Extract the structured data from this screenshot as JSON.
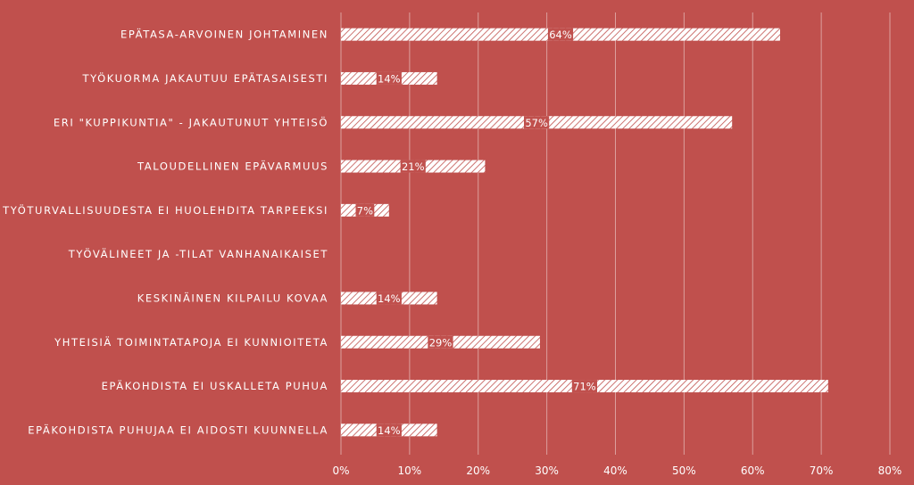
{
  "chart_data": {
    "type": "bar",
    "orientation": "horizontal",
    "categories": [
      "EPÄTASA-ARVOINEN JOHTAMINEN",
      "TYÖKUORMA JAKAUTUU EPÄTASAISESTI",
      "ERI \"KUPPIKUNTIA\" - JAKAUTUNUT YHTEISÖ",
      "TALOUDELLINEN EPÄVARMUUS",
      "TYÖTURVALLISUUDESTA EI HUOLEHDITA TARPEEKSI",
      "TYÖVÄLINEET JA -TILAT VANHANAIKAISET",
      "KESKINÄINEN KILPAILU KOVAA",
      "YHTEISIÄ TOIMINTATAPOJA EI KUNNIOITETA",
      "EPÄKOHDISTA EI USKALLETA PUHUA",
      "EPÄKOHDISTA PUHUJAA EI AIDOSTI KUUNNELLA"
    ],
    "values": [
      64,
      14,
      57,
      21,
      7,
      0,
      14,
      29,
      71,
      14
    ],
    "data_labels": [
      "64%",
      "14%",
      "57%",
      "21%",
      "7%",
      "",
      "14%",
      "29%",
      "71%",
      "14%"
    ],
    "xlim": [
      0,
      80
    ],
    "x_ticks": [
      0,
      10,
      20,
      30,
      40,
      50,
      60,
      70,
      80
    ],
    "x_tick_labels": [
      "0%",
      "10%",
      "20%",
      "30%",
      "40%",
      "50%",
      "60%",
      "70%",
      "80%"
    ],
    "title": "",
    "xlabel": "",
    "ylabel": "",
    "grid": true,
    "legend": "none",
    "colors": {
      "background": "#c0504d",
      "bar_fill": "#ffffff",
      "bar_hatch": "#c0504d",
      "text": "#ffffff",
      "gridline": "#ffffff"
    }
  }
}
